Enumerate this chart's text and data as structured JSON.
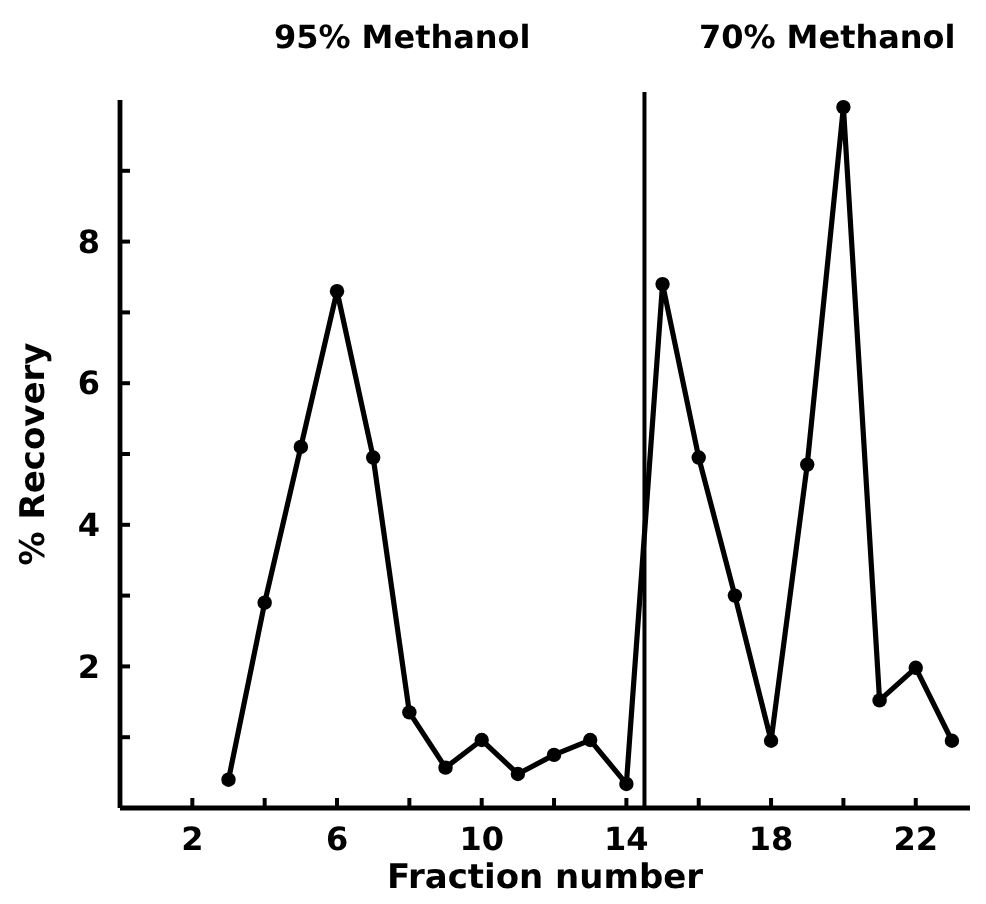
{
  "chart_data": {
    "type": "line",
    "xlabel": "Fraction number",
    "ylabel": "% Recovery",
    "x": [
      3,
      4,
      5,
      6,
      7,
      8,
      9,
      10,
      11,
      12,
      13,
      14,
      15,
      16,
      17,
      18,
      19,
      20,
      21,
      22,
      23
    ],
    "series": [
      {
        "color": "#000000",
        "values": [
          0.4,
          2.9,
          5.1,
          7.3,
          4.95,
          1.35,
          0.57,
          0.96,
          0.48,
          0.75,
          0.96,
          0.34,
          7.4,
          4.95,
          3.0,
          0.95,
          4.85,
          9.9,
          1.52,
          1.98,
          0.95
        ]
      }
    ],
    "xlim": [
      0,
      23.5
    ],
    "ylim": [
      0,
      10
    ],
    "xticks": [
      2,
      {
        "value": 4,
        "label": null
      },
      6,
      {
        "value": 8,
        "label": null
      },
      10,
      {
        "value": 12,
        "label": null
      },
      14,
      {
        "value": 16,
        "label": null
      },
      18,
      {
        "value": 20,
        "label": null
      },
      22
    ],
    "yticks": [
      {
        "value": 1,
        "label": null
      },
      2,
      {
        "value": 3,
        "label": null
      },
      4,
      {
        "value": 5,
        "label": null
      },
      6,
      {
        "value": 7,
        "label": null
      },
      8,
      {
        "value": 9,
        "label": null
      }
    ],
    "ref_lines": [
      {
        "axis": "x",
        "value": 14.5,
        "color": "#000000"
      }
    ],
    "annotations": [
      "95% Methanol",
      "70% Methanol"
    ],
    "marker": "circle",
    "line_style": "solid",
    "grid": false
  }
}
